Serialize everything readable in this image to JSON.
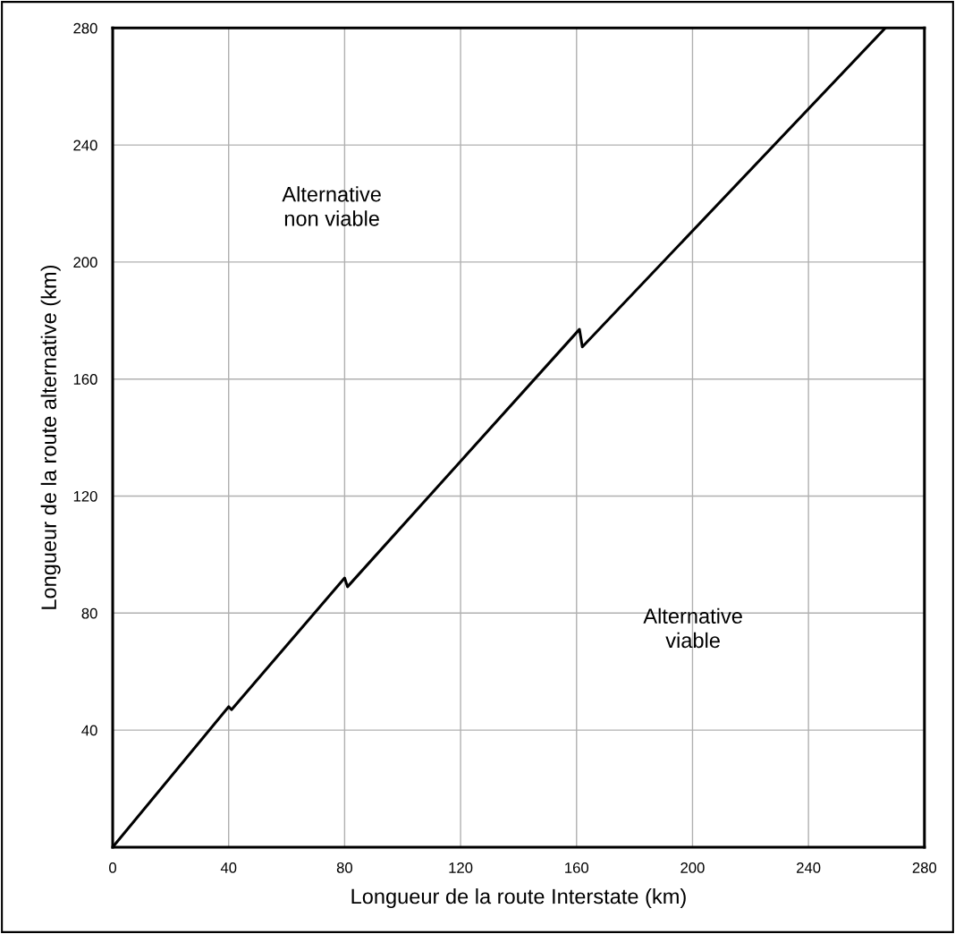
{
  "chart_data": {
    "type": "line",
    "xlabel": "Longueur de la route Interstate (km)",
    "ylabel": "Longueur de la route alternative (km)",
    "x": [
      0,
      40,
      41,
      80,
      81,
      161,
      162,
      266.5
    ],
    "series": [
      {
        "color": "#000000",
        "values": [
          0,
          48,
          47,
          92,
          89,
          177,
          171,
          280
        ]
      }
    ],
    "xlim": [
      0,
      280
    ],
    "xticks": [
      0,
      40,
      80,
      120,
      160,
      200,
      240,
      280
    ],
    "ylim": [
      0,
      280
    ],
    "yticks": [
      40,
      80,
      120,
      160,
      200,
      240,
      280
    ],
    "grid": true,
    "legend": false,
    "marker": "none",
    "line_style": "solid",
    "annotations": [
      "Alternative\nnon viable",
      "Alternative\nviable"
    ]
  }
}
